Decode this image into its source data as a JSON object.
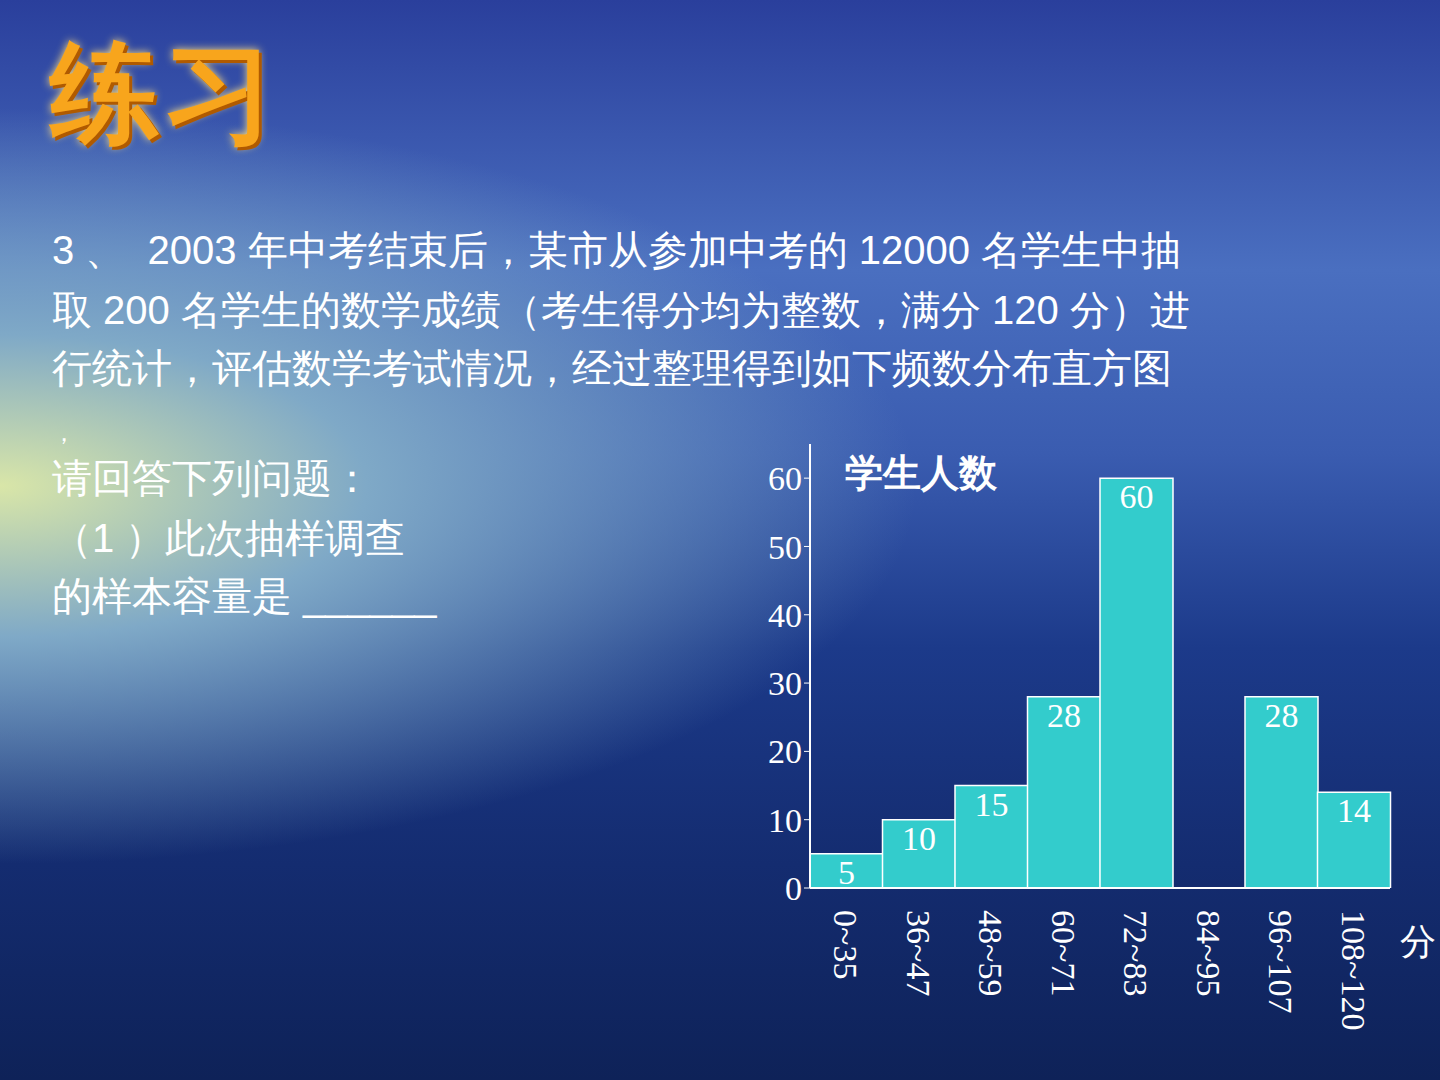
{
  "slide": {
    "title": "练习",
    "question": [
      "3 、  2003 年中考结束后，某市从参加中考的 12000 名学生中抽",
      "取 200 名学生的数学成绩（考生得分均为整数，满分 120 分）进",
      "行统计，评估数学考试情况，经过整理得到如下频数分布直方图",
      "，",
      "请回答下列问题：",
      "（1 ）此次抽样调查",
      "的样本容量是 ______"
    ]
  },
  "chart_data": {
    "type": "bar",
    "categories": [
      "0~35",
      "36~47",
      "48~59",
      "60~71",
      "72~83",
      "84~95",
      "96~107",
      "108~120"
    ],
    "values": [
      5,
      10,
      15,
      28,
      60,
      null,
      28,
      14
    ],
    "color": "#33cccc",
    "ylabel": "学生人数",
    "xlabel": "分",
    "ylim": [
      0,
      65
    ],
    "yticks": [
      0,
      10,
      20,
      30,
      40,
      50,
      60
    ],
    "data_labels": true,
    "grid": false
  }
}
